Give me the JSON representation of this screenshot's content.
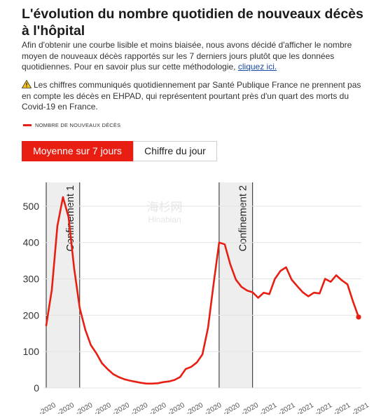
{
  "title": "L'évolution du nombre quotidien de nouveaux décès à l'hôpital",
  "intro": {
    "text": "Afin d'obtenir une courbe lisible et moins biaisée, nous avons décidé d'afficher le nombre moyen de nouveaux décès rapportés sur les 7 derniers jours plutôt que les données quotidiennes. Pour en savoir plus sur cette méthodologie, ",
    "link": "cliquez ici."
  },
  "warning": {
    "icon": "warning-icon",
    "text": "Les chiffres communiqués quotidiennement par Santé Publique France ne prennent pas en compte les décès en EHPAD, qui représentent pourtant près d'un quart des morts du Covid-19 en France."
  },
  "legend": {
    "label": "NOMBRE DE NOUVEAUX DÉCÈS"
  },
  "toggle": {
    "active": "Moyenne sur 7 jours",
    "inactive": "Chiffre du jour"
  },
  "watermark": {
    "line1": "海杉网",
    "line2": "Hinabian"
  },
  "colors": {
    "accent": "#e81e12",
    "band": "#eeeeee",
    "grid": "#e3e3e3"
  },
  "chart_data": {
    "type": "line",
    "ylim": [
      0,
      550
    ],
    "yticks": [
      0,
      100,
      200,
      300,
      400,
      500
    ],
    "grid": true,
    "xticks": [
      "2020",
      "2020",
      "2020",
      "2020",
      "2020",
      "2020",
      "2020",
      "2020",
      "2020",
      "2020",
      "2020",
      "2020",
      "2021",
      "2021",
      "2021",
      "2021",
      "2021",
      "2021"
    ],
    "annotations": [
      {
        "label": "Confinement 1",
        "start_index": 0,
        "end_index": 6
      },
      {
        "label": "Confinement 2",
        "start_index": 31,
        "end_index": 37
      }
    ],
    "series": [
      {
        "values": [
          172,
          270,
          445,
          525,
          470,
          330,
          220,
          160,
          118,
          95,
          68,
          52,
          38,
          30,
          24,
          20,
          17,
          14,
          12,
          12,
          13,
          16,
          18,
          22,
          30,
          52,
          58,
          70,
          92,
          165,
          285,
          400,
          395,
          340,
          298,
          278,
          268,
          263,
          248,
          262,
          258,
          300,
          322,
          332,
          298,
          280,
          263,
          252,
          262,
          260,
          300,
          292,
          310,
          296,
          285,
          238,
          195
        ],
        "end_value": 195
      }
    ]
  }
}
